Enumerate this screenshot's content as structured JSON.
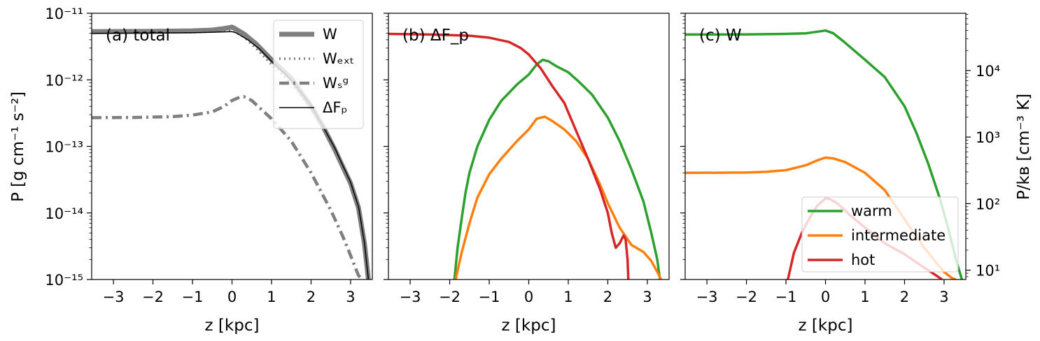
{
  "chart_data": [
    {
      "type": "line",
      "panel_label": "(a) total",
      "xlabel": "z [kpc]",
      "ylabel": "P [g cm^-1 s^-2]",
      "yscale": "log",
      "xlim": [
        -3.55,
        3.55
      ],
      "ylim": [
        1e-15,
        1e-11
      ],
      "x_ticks": [
        "−3",
        "−2",
        "−1",
        "0",
        "1",
        "2",
        "3"
      ],
      "y_ticks": [
        "10^-15",
        "10^-14",
        "10^-13",
        "10^-12",
        "10^-11"
      ],
      "legend_position": "top-right",
      "legend": [
        "W",
        "W_ext",
        "W_sg",
        "ΔF_p"
      ],
      "series": [
        {
          "name": "W",
          "color": "#7f7f7f",
          "style": "thick-solid",
          "x": [
            -3.55,
            -2,
            -1,
            -0.5,
            -0.2,
            0,
            0.05,
            0.3,
            0.6,
            1.0,
            1.5,
            2.0,
            2.3,
            2.6,
            2.8,
            3.0,
            3.2,
            3.35,
            3.45
          ],
          "y": [
            5.3e-12,
            5.35e-12,
            5.45e-12,
            5.6e-12,
            5.9e-12,
            6.2e-12,
            6e-12,
            4.9e-12,
            3.5e-12,
            2e-12,
            1.05e-12,
            4e-13,
            2e-13,
            9e-14,
            5e-14,
            2.8e-14,
            1.2e-14,
            3.5e-15,
            1e-15
          ]
        },
        {
          "name": "W_ext",
          "color": "#7f7f7f",
          "style": "dotted",
          "x": [
            -3.55,
            -2,
            -1,
            -0.5,
            0,
            0.3,
            0.6,
            1.0,
            1.5,
            2.0,
            2.3,
            2.6,
            2.8,
            3.0,
            3.2,
            3.35,
            3.45
          ],
          "y": [
            5.1e-12,
            5.15e-12,
            5.2e-12,
            5.3e-12,
            5.6e-12,
            4.4e-12,
            3e-12,
            1.7e-12,
            9e-13,
            3.6e-13,
            1.9e-13,
            8.5e-14,
            4.8e-14,
            2.7e-14,
            1.15e-14,
            3.4e-15,
            1e-15
          ]
        },
        {
          "name": "W_sg",
          "color": "#7f7f7f",
          "style": "dash-dot",
          "x": [
            -3.55,
            -2.5,
            -1.5,
            -1.0,
            -0.5,
            -0.2,
            0,
            0.2,
            0.3,
            0.5,
            1.0,
            1.5,
            2.0,
            2.5,
            2.8,
            3.0,
            3.2,
            3.3
          ],
          "y": [
            2.7e-13,
            2.72e-13,
            2.8e-13,
            2.95e-13,
            3.3e-13,
            4e-13,
            4.9e-13,
            5.5e-13,
            5.6e-13,
            4.9e-13,
            2.6e-13,
            1.2e-13,
            4e-14,
            1.1e-14,
            4.5e-15,
            2.3e-15,
            1.15e-15,
            1e-15
          ]
        },
        {
          "name": "ΔF_p",
          "color": "#000000",
          "style": "thin-solid",
          "x": [
            -3.55,
            -2,
            -1,
            -0.5,
            0,
            0.1,
            0.4,
            0.7,
            1.0,
            1.5,
            2.0,
            2.3,
            2.6,
            2.8,
            3.0,
            3.2,
            3.35,
            3.45
          ],
          "y": [
            5e-12,
            5.05e-12,
            5.1e-12,
            5.2e-12,
            5.3e-12,
            5.1e-12,
            4e-12,
            2.9e-12,
            1.9e-12,
            1e-12,
            4.1e-13,
            2e-13,
            9.5e-14,
            5.2e-14,
            2.9e-14,
            1.25e-14,
            3.6e-15,
            1e-15
          ]
        }
      ]
    },
    {
      "type": "line",
      "panel_label": "(b) ΔF_p",
      "xlabel": "z [kpc]",
      "yscale": "log",
      "xlim": [
        -3.55,
        3.55
      ],
      "ylim": [
        1e-15,
        1e-11
      ],
      "x_ticks": [
        "−3",
        "−2",
        "−1",
        "0",
        "1",
        "2",
        "3"
      ],
      "series": [
        {
          "name": "warm",
          "color": "#2ca02c",
          "style": "solid",
          "x": [
            -1.88,
            -1.8,
            -1.7,
            -1.6,
            -1.5,
            -1.3,
            -1.0,
            -0.7,
            -0.3,
            0,
            0.2,
            0.35,
            0.5,
            0.7,
            1.0,
            1.3,
            1.6,
            2.0,
            2.3,
            2.6,
            2.9,
            3.1,
            3.25,
            3.32
          ],
          "y": [
            1e-15,
            3e-15,
            8e-15,
            2e-14,
            4e-14,
            1e-13,
            2.5e-13,
            4.8e-13,
            8.5e-13,
            1.2e-12,
            1.7e-12,
            2e-12,
            1.9e-12,
            1.6e-12,
            1.3e-12,
            9e-13,
            6e-13,
            2.7e-13,
            1.2e-13,
            4.5e-14,
            1.5e-14,
            5e-15,
            2e-15,
            1e-15
          ]
        },
        {
          "name": "intermediate",
          "color": "#ff7f0e",
          "style": "solid",
          "x": [
            -1.85,
            -1.7,
            -1.5,
            -1.3,
            -1.0,
            -0.7,
            -0.3,
            0,
            0.2,
            0.4,
            0.6,
            0.9,
            1.2,
            1.5,
            1.8,
            2.0,
            2.3,
            2.6,
            2.9,
            3.1,
            3.25,
            3.35
          ],
          "y": [
            1e-15,
            2.5e-15,
            7e-15,
            1.7e-14,
            3.8e-14,
            6.5e-14,
            1.2e-13,
            1.8e-13,
            2.6e-13,
            2.8e-13,
            2.4e-13,
            1.8e-13,
            1.2e-13,
            6.5e-14,
            2.7e-14,
            1.4e-14,
            6e-15,
            3.3e-15,
            2.6e-15,
            1.9e-15,
            1.3e-15,
            1e-15
          ]
        },
        {
          "name": "hot",
          "color": "#d62728",
          "style": "solid",
          "x": [
            -3.55,
            -2.5,
            -1.5,
            -1.0,
            -0.5,
            -0.2,
            0,
            0.3,
            0.6,
            0.9,
            1.2,
            1.5,
            1.8,
            2.0,
            2.1,
            2.2,
            2.3,
            2.4,
            2.45,
            2.5,
            2.52
          ],
          "y": [
            4.9e-12,
            4.8e-12,
            4.6e-12,
            4.3e-12,
            3.7e-12,
            3e-12,
            2.4e-12,
            1.5e-12,
            8e-13,
            4.5e-13,
            1.7e-13,
            6.5e-14,
            2.3e-14,
            1e-14,
            5e-15,
            3e-15,
            3.5e-15,
            4.6e-15,
            4e-15,
            2e-15,
            1e-15
          ]
        }
      ]
    },
    {
      "type": "line",
      "panel_label": "(c) W",
      "xlabel": "z [kpc]",
      "ylabel_right": "P/k_B [cm^-3 K]",
      "yscale": "log",
      "xlim": [
        -3.55,
        3.55
      ],
      "ylim": [
        1e-15,
        1e-11
      ],
      "x_ticks": [
        "−3",
        "−2",
        "−1",
        "0",
        "1",
        "2",
        "3"
      ],
      "y2_ticks": [
        "10^1",
        "10^2",
        "10^3",
        "10^4"
      ],
      "legend_position": "lower-right",
      "legend": [
        "warm",
        "intermediate",
        "hot"
      ],
      "series": [
        {
          "name": "warm",
          "color": "#2ca02c",
          "style": "solid",
          "x": [
            -3.55,
            -2,
            -1,
            -0.5,
            -0.2,
            0,
            0.2,
            0.5,
            1.0,
            1.5,
            2.0,
            2.3,
            2.6,
            2.9,
            3.1,
            3.3,
            3.45
          ],
          "y": [
            4.8e-12,
            4.82e-12,
            4.9e-12,
            5e-12,
            5.3e-12,
            5.5e-12,
            5e-12,
            3.6e-12,
            2e-12,
            1.1e-12,
            4e-13,
            1.6e-13,
            5.5e-14,
            1.6e-14,
            6e-15,
            2e-15,
            1e-15
          ]
        },
        {
          "name": "intermediate",
          "color": "#ff7f0e",
          "style": "solid",
          "x": [
            -3.55,
            -2,
            -1.5,
            -1,
            -0.5,
            -0.2,
            0,
            0.2,
            0.5,
            1.0,
            1.5,
            2.0,
            2.5,
            2.8,
            3.0,
            3.2,
            3.3
          ],
          "y": [
            4e-14,
            4.05e-14,
            4.15e-14,
            4.4e-14,
            5.2e-14,
            6.2e-14,
            6.8e-14,
            6.6e-14,
            5.8e-14,
            4e-14,
            2.2e-14,
            8e-15,
            3e-15,
            1.8e-15,
            1.3e-15,
            1.05e-15,
            1e-15
          ]
        },
        {
          "name": "hot",
          "color": "#d62728",
          "style": "solid",
          "x": [
            -0.95,
            -0.8,
            -0.6,
            -0.4,
            -0.2,
            0,
            0.1,
            0.3,
            0.6,
            1.0,
            1.5,
            2.0,
            2.5,
            2.8,
            2.95
          ],
          "y": [
            1e-15,
            2.5e-15,
            5e-15,
            8.5e-15,
            1.3e-14,
            1.65e-14,
            1.62e-14,
            1.4e-14,
            9.5e-15,
            6e-15,
            3.5e-15,
            2.4e-15,
            1.5e-15,
            1.15e-15,
            1e-15
          ]
        }
      ]
    }
  ]
}
